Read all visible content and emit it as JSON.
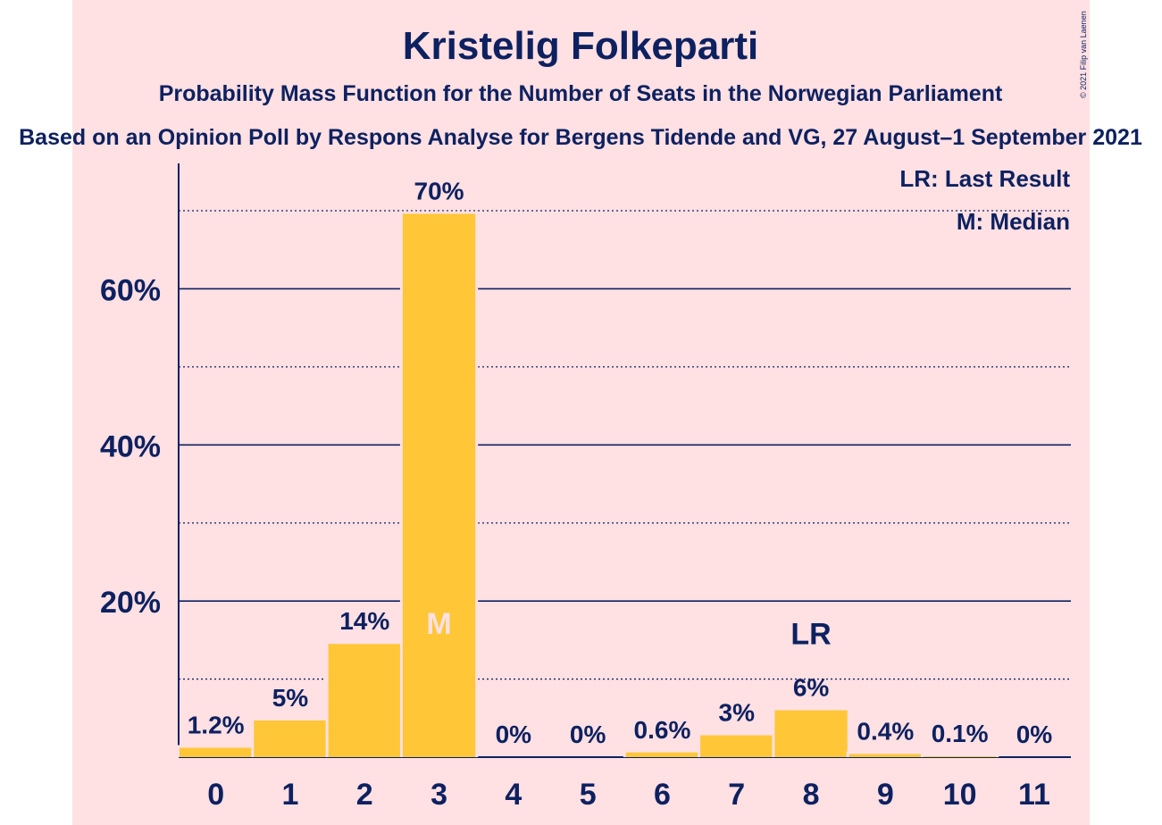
{
  "colors": {
    "background": "#FFE0E3",
    "bar": "#FFC637",
    "text": "#0D2160",
    "median_label": "#FFE0E3"
  },
  "credit": "© 2021 Filip van Laenen",
  "chart_data": {
    "type": "bar",
    "title": "Kristelig Folkeparti",
    "subtitle": "Probability Mass Function for the Number of Seats in the Norwegian Parliament",
    "subtitle2": "Based on an Opinion Poll by Respons Analyse for Bergens Tidende and VG, 27 August–1 September 2021",
    "categories": [
      "0",
      "1",
      "2",
      "3",
      "4",
      "5",
      "6",
      "7",
      "8",
      "9",
      "10",
      "11"
    ],
    "values": [
      1.2,
      4.7,
      14.5,
      69.6,
      0,
      0,
      0.6,
      2.8,
      6.0,
      0.4,
      0.1,
      0
    ],
    "value_labels": [
      "1.2%",
      "5%",
      "14%",
      "70%",
      "0%",
      "0%",
      "0.6%",
      "3%",
      "6%",
      "0.4%",
      "0.1%",
      "0%"
    ],
    "yticks": [
      20,
      40,
      60
    ],
    "ytick_labels": [
      "20%",
      "40%",
      "60%"
    ],
    "minor_gridlines": [
      10,
      30,
      50,
      70
    ],
    "ylim": [
      0,
      75
    ],
    "grid": true,
    "median_index": 3,
    "median_label": "M",
    "last_result_index": 8,
    "last_result_label": "LR",
    "legend": [
      "LR: Last Result",
      "M: Median"
    ],
    "legend_position": "top-right"
  }
}
